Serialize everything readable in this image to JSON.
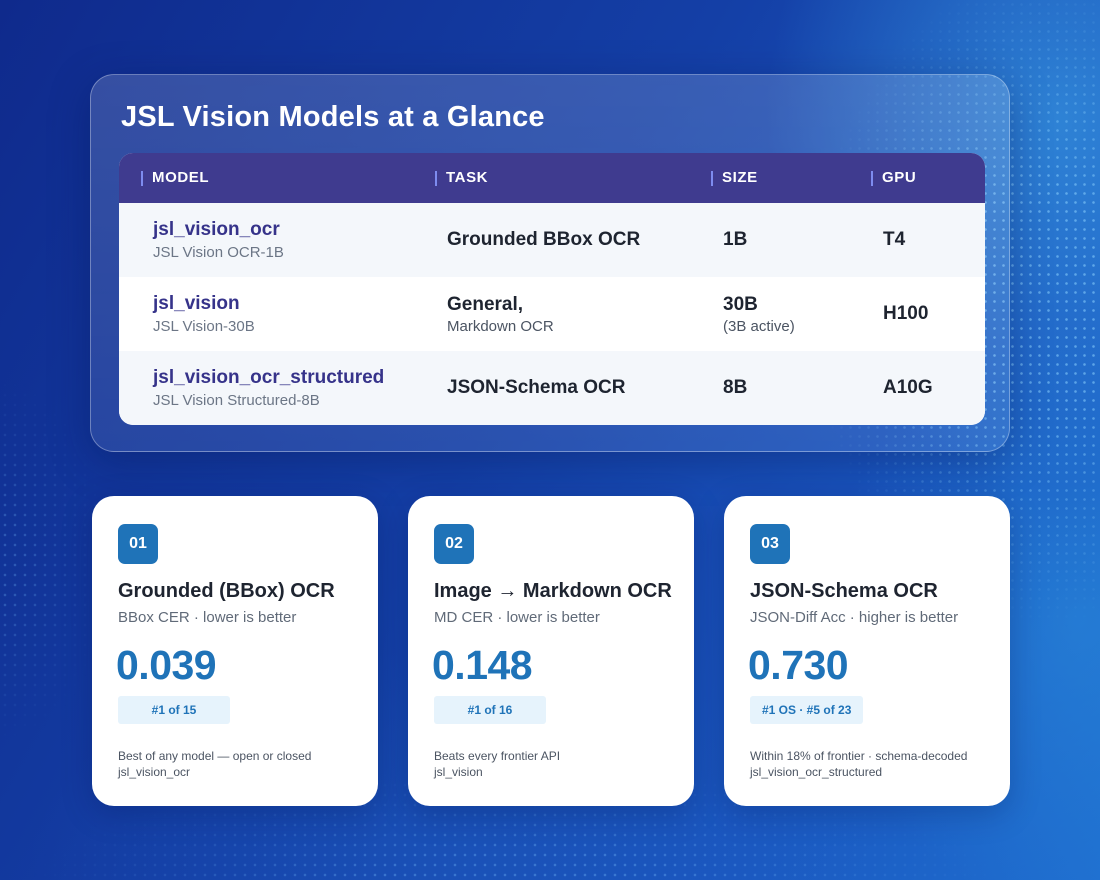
{
  "title": "JSL Vision Models at a Glance",
  "table": {
    "headers": [
      "MODEL",
      "TASK",
      "SIZE",
      "GPU"
    ],
    "rows": [
      {
        "model": "jsl_vision_ocr",
        "model_sub": "JSL Vision OCR-1B",
        "task": "Grounded BBox OCR",
        "task_sub": "",
        "size": "1B",
        "size_sub": "",
        "gpu": "T4"
      },
      {
        "model": "jsl_vision",
        "model_sub": "JSL Vision-30B",
        "task": "General,",
        "task_sub": "Markdown OCR",
        "size": "30B",
        "size_sub": "(3B active)",
        "gpu": "H100"
      },
      {
        "model": "jsl_vision_ocr_structured",
        "model_sub": "JSL Vision Structured-8B",
        "task": "JSON-Schema OCR",
        "task_sub": "",
        "size": "8B",
        "size_sub": "",
        "gpu": "A10G"
      }
    ]
  },
  "cards": [
    {
      "num": "01",
      "title": "Grounded (BBox) OCR",
      "metric": "BBox CER · lower is better",
      "score": "0.039",
      "rank": "#1 of 15",
      "note_line1": "Best of any model — open or closed",
      "note_line2": "jsl_vision_ocr"
    },
    {
      "num": "02",
      "title": "Image → Markdown OCR",
      "metric": "MD CER · lower is better",
      "score": "0.148",
      "rank": "#1 of 16",
      "note_line1": "Beats every frontier API",
      "note_line2": "jsl_vision"
    },
    {
      "num": "03",
      "title": "JSON-Schema OCR",
      "metric": "JSON-Diff Acc · higher is better",
      "score": "0.730",
      "rank": "#1 OS · #5 of 23",
      "note_line1": "Within 18% of frontier · schema-decoded",
      "note_line2": "jsl_vision_ocr_structured"
    }
  ],
  "colors": {
    "accent": "#1f73b8",
    "header_bg": "#3f3b8f",
    "model_name": "#36338a",
    "rank_bg": "#e6f3fc"
  }
}
